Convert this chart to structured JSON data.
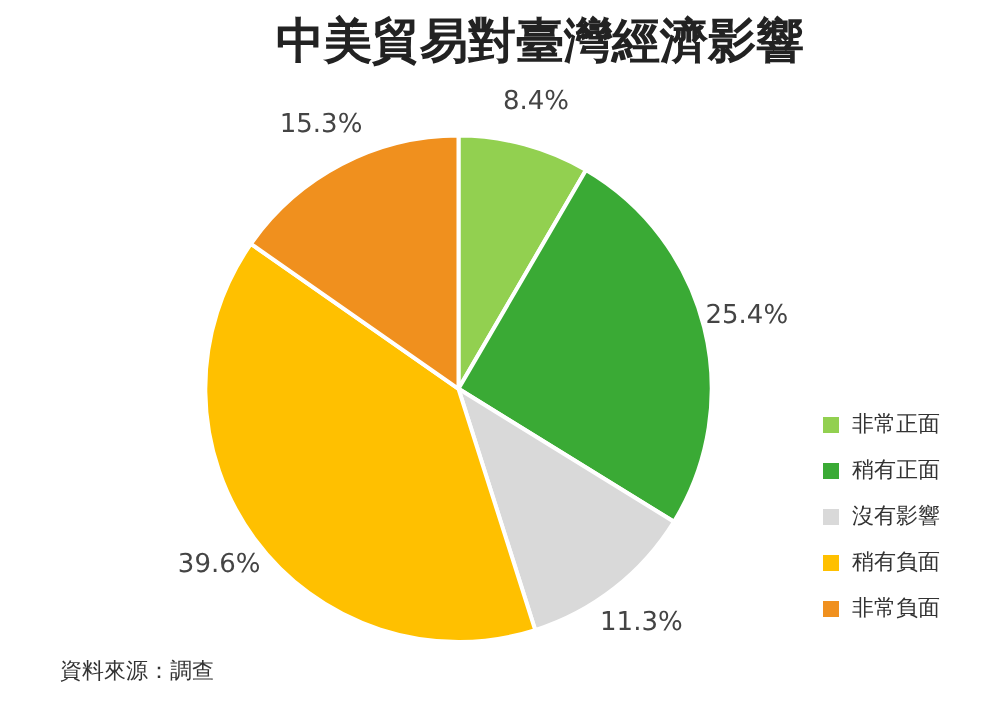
{
  "chart_data": {
    "type": "pie",
    "title": "中美貿易對臺灣經濟影響",
    "categories": [
      "非常正面",
      "稍有正面",
      "沒有影響",
      "稍有負面",
      "非常負面"
    ],
    "values": [
      8.4,
      25.4,
      11.3,
      39.6,
      15.3
    ],
    "colors": [
      "#92d050",
      "#3aaa35",
      "#d9d9d9",
      "#ffc000",
      "#f0901e"
    ],
    "value_labels": [
      "8.4%",
      "25.4%",
      "11.3%",
      "39.6%",
      "15.3%"
    ],
    "legend": "right",
    "annotations": [
      "資料來源：調查"
    ]
  }
}
